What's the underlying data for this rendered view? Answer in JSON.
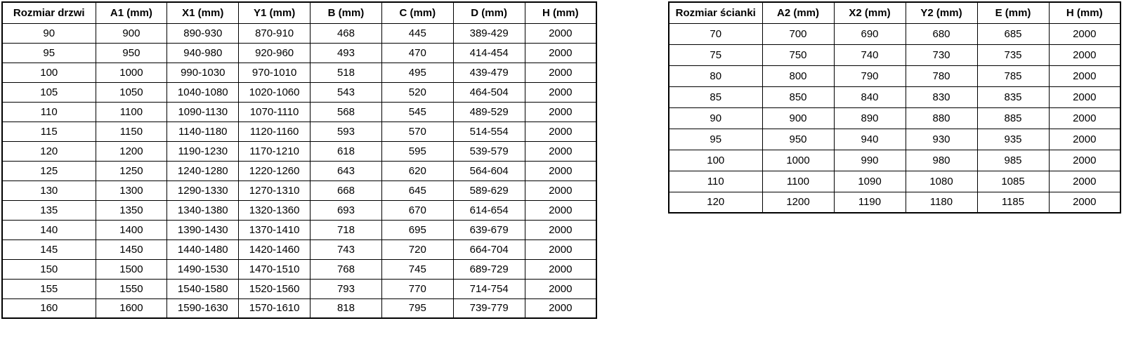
{
  "page": {
    "background_color": "#ffffff",
    "grid_line_color": "#000000",
    "text_color": "#000000"
  },
  "left_table": {
    "title": "door size specification table",
    "headers": [
      "Rozmiar drzwi",
      "A1 (mm)",
      "X1 (mm)",
      "Y1 (mm)",
      "B (mm)",
      "C (mm)",
      "D (mm)",
      "H (mm)"
    ],
    "rows": [
      [
        "90",
        "900",
        "890-930",
        "870-910",
        "468",
        "445",
        "389-429",
        "2000"
      ],
      [
        "95",
        "950",
        "940-980",
        "920-960",
        "493",
        "470",
        "414-454",
        "2000"
      ],
      [
        "100",
        "1000",
        "990-1030",
        "970-1010",
        "518",
        "495",
        "439-479",
        "2000"
      ],
      [
        "105",
        "1050",
        "1040-1080",
        "1020-1060",
        "543",
        "520",
        "464-504",
        "2000"
      ],
      [
        "110",
        "1100",
        "1090-1130",
        "1070-1110",
        "568",
        "545",
        "489-529",
        "2000"
      ],
      [
        "115",
        "1150",
        "1140-1180",
        "1120-1160",
        "593",
        "570",
        "514-554",
        "2000"
      ],
      [
        "120",
        "1200",
        "1190-1230",
        "1170-1210",
        "618",
        "595",
        "539-579",
        "2000"
      ],
      [
        "125",
        "1250",
        "1240-1280",
        "1220-1260",
        "643",
        "620",
        "564-604",
        "2000"
      ],
      [
        "130",
        "1300",
        "1290-1330",
        "1270-1310",
        "668",
        "645",
        "589-629",
        "2000"
      ],
      [
        "135",
        "1350",
        "1340-1380",
        "1320-1360",
        "693",
        "670",
        "614-654",
        "2000"
      ],
      [
        "140",
        "1400",
        "1390-1430",
        "1370-1410",
        "718",
        "695",
        "639-679",
        "2000"
      ],
      [
        "145",
        "1450",
        "1440-1480",
        "1420-1460",
        "743",
        "720",
        "664-704",
        "2000"
      ],
      [
        "150",
        "1500",
        "1490-1530",
        "1470-1510",
        "768",
        "745",
        "689-729",
        "2000"
      ],
      [
        "155",
        "1550",
        "1540-1580",
        "1520-1560",
        "793",
        "770",
        "714-754",
        "2000"
      ],
      [
        "160",
        "1600",
        "1590-1630",
        "1570-1610",
        "818",
        "795",
        "739-779",
        "2000"
      ]
    ]
  },
  "right_table": {
    "title": "wall panel size specification table",
    "headers": [
      "Rozmiar ścianki",
      "A2 (mm)",
      "X2 (mm)",
      "Y2 (mm)",
      "E (mm)",
      "H (mm)"
    ],
    "rows": [
      [
        "70",
        "700",
        "690",
        "680",
        "685",
        "2000"
      ],
      [
        "75",
        "750",
        "740",
        "730",
        "735",
        "2000"
      ],
      [
        "80",
        "800",
        "790",
        "780",
        "785",
        "2000"
      ],
      [
        "85",
        "850",
        "840",
        "830",
        "835",
        "2000"
      ],
      [
        "90",
        "900",
        "890",
        "880",
        "885",
        "2000"
      ],
      [
        "95",
        "950",
        "940",
        "930",
        "935",
        "2000"
      ],
      [
        "100",
        "1000",
        "990",
        "980",
        "985",
        "2000"
      ],
      [
        "110",
        "1100",
        "1090",
        "1080",
        "1085",
        "2000"
      ],
      [
        "120",
        "1200",
        "1190",
        "1180",
        "1185",
        "2000"
      ]
    ]
  }
}
